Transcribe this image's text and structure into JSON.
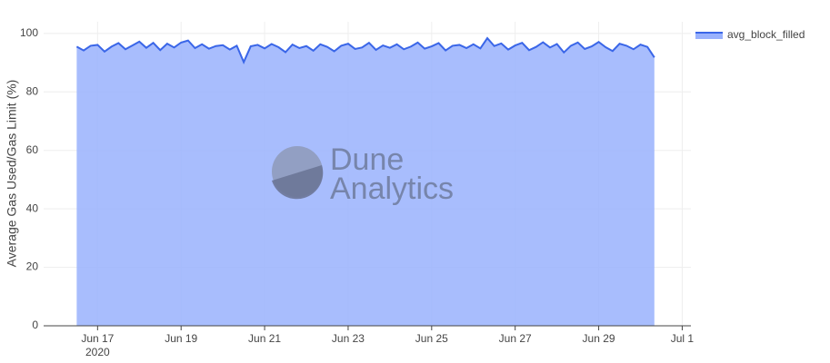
{
  "chart_data": {
    "type": "area",
    "y_axis_label": "Average Gas Used/Gas Limit (%)",
    "watermark": {
      "line1": "Dune",
      "line2": "Analytics"
    },
    "legend_position": "top-right",
    "grid": true,
    "ylim": [
      0,
      104
    ],
    "yticks": [
      0,
      20,
      40,
      60,
      80,
      100
    ],
    "xlim": [
      "2020-06-15T17:00",
      "2020-07-01T05:00"
    ],
    "xticks": [
      {
        "value": "2020-06-17",
        "label": "Jun 17",
        "sublabel": "2020"
      },
      {
        "value": "2020-06-19",
        "label": "Jun 19"
      },
      {
        "value": "2020-06-21",
        "label": "Jun 21"
      },
      {
        "value": "2020-06-23",
        "label": "Jun 23"
      },
      {
        "value": "2020-06-25",
        "label": "Jun 25"
      },
      {
        "value": "2020-06-27",
        "label": "Jun 27"
      },
      {
        "value": "2020-06-29",
        "label": "Jun 29"
      },
      {
        "value": "2020-07-01",
        "label": "Jul 1"
      }
    ],
    "x": [
      "2020-06-16T12:00",
      "2020-06-16T16:00",
      "2020-06-16T20:00",
      "2020-06-17T00:00",
      "2020-06-17T04:00",
      "2020-06-17T08:00",
      "2020-06-17T12:00",
      "2020-06-17T16:00",
      "2020-06-17T20:00",
      "2020-06-18T00:00",
      "2020-06-18T04:00",
      "2020-06-18T08:00",
      "2020-06-18T12:00",
      "2020-06-18T16:00",
      "2020-06-18T20:00",
      "2020-06-19T00:00",
      "2020-06-19T04:00",
      "2020-06-19T08:00",
      "2020-06-19T12:00",
      "2020-06-19T16:00",
      "2020-06-19T20:00",
      "2020-06-20T00:00",
      "2020-06-20T04:00",
      "2020-06-20T08:00",
      "2020-06-20T12:00",
      "2020-06-20T16:00",
      "2020-06-20T20:00",
      "2020-06-21T00:00",
      "2020-06-21T04:00",
      "2020-06-21T08:00",
      "2020-06-21T12:00",
      "2020-06-21T16:00",
      "2020-06-21T20:00",
      "2020-06-22T00:00",
      "2020-06-22T04:00",
      "2020-06-22T08:00",
      "2020-06-22T12:00",
      "2020-06-22T16:00",
      "2020-06-22T20:00",
      "2020-06-23T00:00",
      "2020-06-23T04:00",
      "2020-06-23T08:00",
      "2020-06-23T12:00",
      "2020-06-23T16:00",
      "2020-06-23T20:00",
      "2020-06-24T00:00",
      "2020-06-24T04:00",
      "2020-06-24T08:00",
      "2020-06-24T12:00",
      "2020-06-24T16:00",
      "2020-06-24T20:00",
      "2020-06-25T00:00",
      "2020-06-25T04:00",
      "2020-06-25T08:00",
      "2020-06-25T12:00",
      "2020-06-25T16:00",
      "2020-06-25T20:00",
      "2020-06-26T00:00",
      "2020-06-26T04:00",
      "2020-06-26T08:00",
      "2020-06-26T12:00",
      "2020-06-26T16:00",
      "2020-06-26T20:00",
      "2020-06-27T00:00",
      "2020-06-27T04:00",
      "2020-06-27T08:00",
      "2020-06-27T12:00",
      "2020-06-27T16:00",
      "2020-06-27T20:00",
      "2020-06-28T00:00",
      "2020-06-28T04:00",
      "2020-06-28T08:00",
      "2020-06-28T12:00",
      "2020-06-28T16:00",
      "2020-06-28T20:00",
      "2020-06-29T00:00",
      "2020-06-29T04:00",
      "2020-06-29T08:00",
      "2020-06-29T12:00",
      "2020-06-29T16:00",
      "2020-06-29T20:00",
      "2020-06-30T00:00",
      "2020-06-30T04:00",
      "2020-06-30T08:00"
    ],
    "series": [
      {
        "name": "avg_block_filled",
        "color": "#3a66e8",
        "fill": "#99b1fd",
        "values": [
          95.5,
          94.2,
          95.8,
          96.1,
          93.8,
          95.5,
          96.7,
          94.6,
          95.9,
          97.2,
          95.1,
          96.8,
          94.3,
          96.5,
          95.2,
          96.9,
          97.6,
          95.0,
          96.3,
          94.8,
          95.7,
          96.0,
          94.5,
          95.8,
          90.2,
          95.6,
          96.1,
          94.9,
          96.4,
          95.3,
          93.6,
          96.2,
          95.0,
          95.7,
          94.1,
          96.3,
          95.4,
          93.9,
          95.8,
          96.5,
          94.7,
          95.2,
          96.8,
          94.4,
          95.9,
          95.1,
          96.3,
          94.6,
          95.5,
          96.9,
          94.8,
          95.6,
          96.7,
          94.2,
          95.8,
          96.1,
          95.0,
          96.3,
          94.9,
          98.4,
          95.7,
          96.6,
          94.5,
          95.9,
          96.8,
          94.3,
          95.4,
          97.0,
          95.2,
          96.4,
          93.5,
          95.8,
          96.9,
          94.7,
          95.6,
          97.1,
          95.3,
          94.0,
          96.5,
          95.8,
          94.6,
          96.2,
          95.4,
          91.8
        ]
      }
    ]
  }
}
